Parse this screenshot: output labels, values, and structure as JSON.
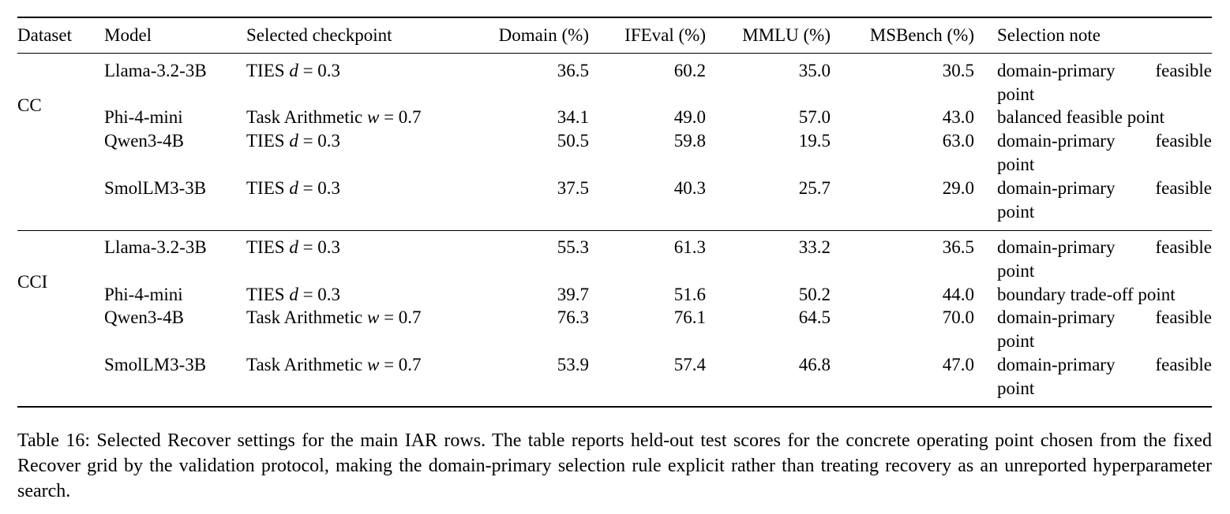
{
  "table": {
    "headers": {
      "dataset": "Dataset",
      "model": "Model",
      "checkpoint": "Selected checkpoint",
      "domain": "Domain (%)",
      "ifeval": "IFEval (%)",
      "mmlu": "MMLU (%)",
      "msbench": "MSBench (%)",
      "note": "Selection note"
    },
    "groups": [
      {
        "dataset": "CC",
        "rows": [
          {
            "model": "Llama-3.2-3B",
            "checkpoint": "TIES d = 0.3",
            "domain": "36.5",
            "ifeval": "60.2",
            "mmlu": "35.0",
            "msbench": "30.5",
            "note": "domain-primary feasible point"
          },
          {
            "model": "Phi-4-mini",
            "checkpoint": "Task Arithmetic w = 0.7",
            "domain": "34.1",
            "ifeval": "49.0",
            "mmlu": "57.0",
            "msbench": "43.0",
            "note": "balanced feasible point"
          },
          {
            "model": "Qwen3-4B",
            "checkpoint": "TIES d = 0.3",
            "domain": "50.5",
            "ifeval": "59.8",
            "mmlu": "19.5",
            "msbench": "63.0",
            "note": "domain-primary feasible point"
          },
          {
            "model": "SmolLM3-3B",
            "checkpoint": "TIES d = 0.3",
            "domain": "37.5",
            "ifeval": "40.3",
            "mmlu": "25.7",
            "msbench": "29.0",
            "note": "domain-primary feasible point"
          }
        ]
      },
      {
        "dataset": "CCI",
        "rows": [
          {
            "model": "Llama-3.2-3B",
            "checkpoint": "TIES d = 0.3",
            "domain": "55.3",
            "ifeval": "61.3",
            "mmlu": "33.2",
            "msbench": "36.5",
            "note": "domain-primary feasible point"
          },
          {
            "model": "Phi-4-mini",
            "checkpoint": "TIES d = 0.3",
            "domain": "39.7",
            "ifeval": "51.6",
            "mmlu": "50.2",
            "msbench": "44.0",
            "note": "boundary trade-off point"
          },
          {
            "model": "Qwen3-4B",
            "checkpoint": "Task Arithmetic w = 0.7",
            "domain": "76.3",
            "ifeval": "76.1",
            "mmlu": "64.5",
            "msbench": "70.0",
            "note": "domain-primary feasible point"
          },
          {
            "model": "SmolLM3-3B",
            "checkpoint": "Task Arithmetic w = 0.7",
            "domain": "53.9",
            "ifeval": "57.4",
            "mmlu": "46.8",
            "msbench": "47.0",
            "note": "domain-primary feasible point"
          }
        ]
      }
    ]
  },
  "caption": "Table 16: Selected Recover settings for the main IAR rows. The table reports held-out test scores for the concrete operating point chosen from the fixed Recover grid by the validation protocol, making the domain-primary selection rule explicit rather than treating recovery as an unreported hyperparameter search."
}
